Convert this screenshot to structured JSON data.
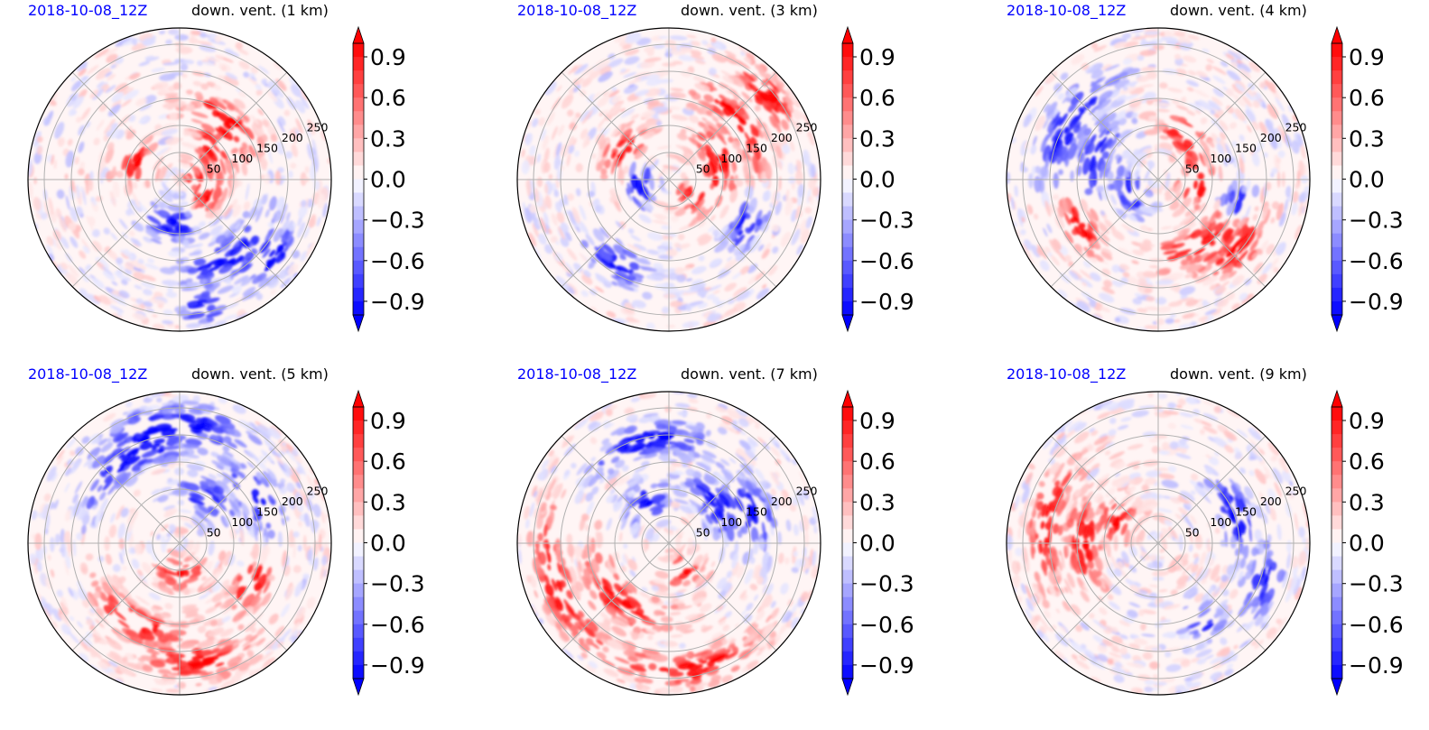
{
  "figure": {
    "colors": {
      "positive": "#ff0000",
      "negative": "#0000ff",
      "neutral": "#ffffff",
      "date_label": "#0000ff",
      "grid": "#b0b0b0"
    }
  },
  "chart_data": [
    {
      "type": "heatmap",
      "projection": "polar",
      "date_label": "2018-10-08_12Z",
      "title": "down. vent. (1 km)",
      "radial_ticks": [
        "50",
        "100",
        "150",
        "200",
        "250"
      ],
      "radial_range_km": [
        0,
        280
      ],
      "azimuth_gridline_step_deg": 45,
      "colorbar": {
        "ticks": [
          "0.9",
          "0.6",
          "0.3",
          "0.0",
          "−0.3",
          "−0.6",
          "−0.9"
        ],
        "range": [
          -1.0,
          1.0
        ],
        "extend": "both",
        "cmap": "bwr"
      },
      "pattern": {
        "pos": [
          [
            0.5,
            50,
            30
          ],
          [
            0.3,
            160,
            25
          ],
          [
            0.3,
            40,
            30
          ],
          [
            0.2,
            330,
            25
          ],
          [
            0.1,
            10,
            20
          ]
        ],
        "neg": [
          [
            0.3,
            260,
            30
          ],
          [
            0.6,
            300,
            30
          ],
          [
            0.8,
            320,
            15
          ],
          [
            0.85,
            280,
            8
          ]
        ],
        "seed": 11
      }
    },
    {
      "type": "heatmap",
      "projection": "polar",
      "date_label": "2018-10-08_12Z",
      "title": "down. vent. (3 km)",
      "radial_ticks": [
        "50",
        "100",
        "150",
        "200",
        "250"
      ],
      "radial_range_km": [
        0,
        280
      ],
      "azimuth_gridline_step_deg": 45,
      "colorbar": {
        "ticks": [
          "0.9",
          "0.6",
          "0.3",
          "0.0",
          "−0.3",
          "−0.6",
          "−0.9"
        ],
        "range": [
          -1.0,
          1.0
        ],
        "extend": "both",
        "cmap": "bwr"
      },
      "pattern": {
        "pos": [
          [
            0.6,
            40,
            30
          ],
          [
            0.35,
            20,
            40
          ],
          [
            0.35,
            150,
            30
          ],
          [
            0.2,
            330,
            35
          ],
          [
            0.85,
            40,
            15
          ]
        ],
        "neg": [
          [
            0.2,
            190,
            35
          ],
          [
            0.6,
            330,
            15
          ],
          [
            0.65,
            240,
            20
          ]
        ],
        "seed": 23
      }
    },
    {
      "type": "heatmap",
      "projection": "polar",
      "date_label": "2018-10-08_12Z",
      "title": "down. vent. (4 km)",
      "radial_ticks": [
        "50",
        "100",
        "150",
        "200",
        "250"
      ],
      "radial_range_km": [
        0,
        280
      ],
      "azimuth_gridline_step_deg": 45,
      "colorbar": {
        "ticks": [
          "0.9",
          "0.6",
          "0.3",
          "0.0",
          "−0.3",
          "−0.6",
          "−0.9"
        ],
        "range": [
          -1.0,
          1.0
        ],
        "extend": "both",
        "cmap": "bwr"
      },
      "pattern": {
        "pos": [
          [
            0.25,
            0,
            40
          ],
          [
            0.35,
            60,
            25
          ],
          [
            0.5,
            300,
            30
          ],
          [
            0.7,
            320,
            20
          ],
          [
            0.6,
            210,
            20
          ]
        ],
        "neg": [
          [
            0.2,
            200,
            40
          ],
          [
            0.7,
            150,
            30
          ],
          [
            0.45,
            160,
            30
          ],
          [
            0.55,
            345,
            10
          ]
        ],
        "seed": 37
      }
    },
    {
      "type": "heatmap",
      "projection": "polar",
      "date_label": "2018-10-08_12Z",
      "title": "down. vent. (5 km)",
      "radial_ticks": [
        "50",
        "100",
        "150",
        "200",
        "250"
      ],
      "radial_range_km": [
        0,
        280
      ],
      "azimuth_gridline_step_deg": 45,
      "colorbar": {
        "ticks": [
          "0.9",
          "0.6",
          "0.3",
          "0.0",
          "−0.3",
          "−0.6",
          "−0.9"
        ],
        "range": [
          -1.0,
          1.0
        ],
        "extend": "both",
        "cmap": "bwr"
      },
      "pattern": {
        "pos": [
          [
            0.6,
            240,
            30
          ],
          [
            0.8,
            280,
            25
          ],
          [
            0.2,
            270,
            40
          ],
          [
            0.55,
            330,
            20
          ]
        ],
        "neg": [
          [
            0.65,
            120,
            35
          ],
          [
            0.35,
            60,
            30
          ],
          [
            0.6,
            30,
            25
          ],
          [
            0.8,
            90,
            30
          ]
        ],
        "seed": 53
      }
    },
    {
      "type": "heatmap",
      "projection": "polar",
      "date_label": "2018-10-08_12Z",
      "title": "down. vent. (7 km)",
      "radial_ticks": [
        "50",
        "100",
        "150",
        "200",
        "250"
      ],
      "radial_range_km": [
        0,
        280
      ],
      "azimuth_gridline_step_deg": 45,
      "colorbar": {
        "ticks": [
          "0.9",
          "0.6",
          "0.3",
          "0.0",
          "−0.3",
          "−0.6",
          "−0.9"
        ],
        "range": [
          -1.0,
          1.0
        ],
        "extend": "both",
        "cmap": "bwr"
      },
      "pattern": {
        "pos": [
          [
            0.5,
            230,
            40
          ],
          [
            0.8,
            200,
            35
          ],
          [
            0.85,
            280,
            30
          ],
          [
            0.2,
            300,
            30
          ]
        ],
        "neg": [
          [
            0.7,
            100,
            30
          ],
          [
            0.4,
            40,
            30
          ],
          [
            0.6,
            20,
            20
          ],
          [
            0.3,
            120,
            25
          ]
        ],
        "seed": 71
      }
    },
    {
      "type": "heatmap",
      "projection": "polar",
      "date_label": "2018-10-08_12Z",
      "title": "down. vent. (9 km)",
      "radial_ticks": [
        "50",
        "100",
        "150",
        "200",
        "250"
      ],
      "radial_range_km": [
        0,
        280
      ],
      "azimuth_gridline_step_deg": 45,
      "colorbar": {
        "ticks": [
          "0.9",
          "0.6",
          "0.3",
          "0.0",
          "−0.3",
          "−0.6",
          "−0.9"
        ],
        "range": [
          -1.0,
          1.0
        ],
        "extend": "both",
        "cmap": "bwr"
      },
      "pattern": {
        "pos": [
          [
            0.5,
            180,
            30
          ],
          [
            0.75,
            170,
            30
          ],
          [
            0.3,
            150,
            25
          ]
        ],
        "neg": [
          [
            0.55,
            20,
            25
          ],
          [
            0.75,
            340,
            15
          ],
          [
            0.6,
            300,
            10
          ]
        ],
        "seed": 89
      }
    }
  ]
}
